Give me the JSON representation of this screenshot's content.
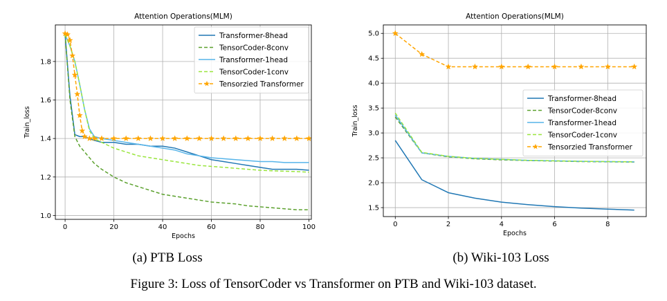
{
  "figure_caption": "Figure 3: Loss of TensorCoder vs Transformer on PTB and Wiki-103 dataset.",
  "chart_data": [
    {
      "type": "line",
      "subcaption": "(a) PTB Loss",
      "title": "Attention Operations(MLM)",
      "xlabel": "Epochs",
      "ylabel": "Train_loss",
      "xlim": [
        -4,
        101
      ],
      "ylim": [
        0.98,
        1.99
      ],
      "xticks": [
        "0",
        "20",
        "40",
        "60",
        "80",
        "100"
      ],
      "yticks": [
        "1.0",
        "1.2",
        "1.4",
        "1.6",
        "1.8"
      ],
      "grid": true,
      "legend_position": "upper right",
      "series": [
        {
          "name": "Transformer-8head",
          "color": "#1f77b4",
          "dash": "solid",
          "marker": "none",
          "x": [
            0,
            2,
            4,
            6,
            8,
            10,
            12,
            15,
            20,
            25,
            30,
            35,
            40,
            45,
            50,
            55,
            60,
            65,
            70,
            75,
            80,
            85,
            90,
            95,
            100
          ],
          "y": [
            1.94,
            1.62,
            1.42,
            1.41,
            1.41,
            1.4,
            1.39,
            1.38,
            1.38,
            1.37,
            1.37,
            1.36,
            1.36,
            1.35,
            1.33,
            1.31,
            1.29,
            1.28,
            1.27,
            1.26,
            1.25,
            1.24,
            1.24,
            1.24,
            1.235
          ]
        },
        {
          "name": "TensorCoder-8conv",
          "color": "#5aa02c",
          "dash": "dashed",
          "marker": "none",
          "x": [
            0,
            2,
            4,
            6,
            8,
            10,
            12,
            15,
            20,
            25,
            30,
            35,
            40,
            45,
            50,
            55,
            60,
            65,
            70,
            75,
            80,
            85,
            90,
            95,
            100
          ],
          "y": [
            1.94,
            1.6,
            1.41,
            1.36,
            1.33,
            1.3,
            1.27,
            1.24,
            1.2,
            1.17,
            1.15,
            1.13,
            1.11,
            1.1,
            1.09,
            1.08,
            1.07,
            1.065,
            1.06,
            1.05,
            1.045,
            1.04,
            1.035,
            1.03,
            1.03
          ]
        },
        {
          "name": "Transformer-1head",
          "color": "#56b4e9",
          "dash": "solid",
          "marker": "none",
          "x": [
            0,
            2,
            4,
            6,
            8,
            10,
            12,
            15,
            20,
            25,
            30,
            35,
            40,
            45,
            50,
            55,
            60,
            65,
            70,
            75,
            80,
            85,
            90,
            95,
            100
          ],
          "y": [
            1.94,
            1.88,
            1.8,
            1.68,
            1.55,
            1.45,
            1.41,
            1.4,
            1.39,
            1.38,
            1.37,
            1.36,
            1.35,
            1.34,
            1.32,
            1.31,
            1.3,
            1.295,
            1.29,
            1.285,
            1.28,
            1.28,
            1.275,
            1.275,
            1.275
          ]
        },
        {
          "name": "TensorCoder-1conv",
          "color": "#99e53c",
          "dash": "dashed",
          "marker": "none",
          "x": [
            0,
            2,
            4,
            6,
            8,
            10,
            12,
            15,
            20,
            25,
            30,
            35,
            40,
            45,
            50,
            55,
            60,
            65,
            70,
            75,
            80,
            85,
            90,
            95,
            100
          ],
          "y": [
            1.94,
            1.88,
            1.8,
            1.68,
            1.55,
            1.44,
            1.4,
            1.38,
            1.35,
            1.33,
            1.31,
            1.3,
            1.29,
            1.28,
            1.27,
            1.26,
            1.255,
            1.25,
            1.245,
            1.24,
            1.235,
            1.232,
            1.23,
            1.228,
            1.225
          ]
        },
        {
          "name": "Tensorzied Transformer",
          "color": "#ffa500",
          "dash": "dashed",
          "marker": "star",
          "x": [
            0,
            1,
            2,
            3,
            4,
            5,
            6,
            7,
            8,
            10,
            12,
            15,
            20,
            25,
            30,
            35,
            40,
            45,
            50,
            55,
            60,
            65,
            70,
            75,
            80,
            85,
            90,
            95,
            100
          ],
          "y": [
            1.945,
            1.94,
            1.91,
            1.83,
            1.73,
            1.63,
            1.52,
            1.44,
            1.41,
            1.4,
            1.4,
            1.4,
            1.4,
            1.4,
            1.4,
            1.4,
            1.4,
            1.4,
            1.4,
            1.4,
            1.4,
            1.4,
            1.4,
            1.4,
            1.4,
            1.4,
            1.4,
            1.4,
            1.4
          ]
        }
      ]
    },
    {
      "type": "line",
      "subcaption": "(b) Wiki-103 Loss",
      "title": "Attention Operations(MLM)",
      "xlabel": "Epochs",
      "ylabel": "Train_loss",
      "xlim": [
        -0.45,
        9.45
      ],
      "ylim": [
        1.32,
        5.17
      ],
      "xticks": [
        "0",
        "2",
        "4",
        "6",
        "8"
      ],
      "yticks": [
        "1.5",
        "2.0",
        "2.5",
        "3.0",
        "3.5",
        "4.0",
        "4.5",
        "5.0"
      ],
      "grid": true,
      "legend_position": "center right",
      "series": [
        {
          "name": "Transformer-8head",
          "color": "#1f77b4",
          "dash": "solid",
          "marker": "none",
          "x": [
            0,
            1,
            2,
            3,
            4,
            5,
            6,
            7,
            8,
            9
          ],
          "y": [
            2.85,
            2.06,
            1.8,
            1.69,
            1.61,
            1.56,
            1.52,
            1.49,
            1.47,
            1.45
          ]
        },
        {
          "name": "TensorCoder-8conv",
          "color": "#5aa02c",
          "dash": "dashed",
          "marker": "none",
          "x": [
            0,
            1,
            2,
            3,
            4,
            5,
            6,
            7,
            8,
            9
          ],
          "y": [
            3.32,
            2.6,
            2.52,
            2.48,
            2.46,
            2.445,
            2.435,
            2.425,
            2.42,
            2.415
          ]
        },
        {
          "name": "Transformer-1head",
          "color": "#56b4e9",
          "dash": "solid",
          "marker": "none",
          "x": [
            0,
            1,
            2,
            3,
            4,
            5,
            6,
            7,
            8,
            9
          ],
          "y": [
            3.36,
            2.6,
            2.53,
            2.49,
            2.47,
            2.45,
            2.44,
            2.43,
            2.425,
            2.42
          ]
        },
        {
          "name": "TensorCoder-1conv",
          "color": "#99e53c",
          "dash": "dashed",
          "marker": "none",
          "x": [
            0,
            1,
            2,
            3,
            4,
            5,
            6,
            7,
            8,
            9
          ],
          "y": [
            3.4,
            2.61,
            2.53,
            2.49,
            2.47,
            2.45,
            2.44,
            2.43,
            2.425,
            2.42
          ]
        },
        {
          "name": "Tensorzied Transformer",
          "color": "#ffa500",
          "dash": "dashed",
          "marker": "star",
          "x": [
            0,
            1,
            2,
            3,
            4,
            5,
            6,
            7,
            8,
            9
          ],
          "y": [
            5.0,
            4.58,
            4.33,
            4.33,
            4.33,
            4.33,
            4.33,
            4.33,
            4.33,
            4.33
          ]
        }
      ]
    }
  ]
}
